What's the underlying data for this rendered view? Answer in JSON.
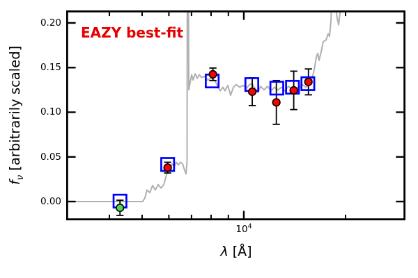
{
  "annotation": {
    "label": "EAZY best-fit",
    "color": "#e60000"
  },
  "axes": {
    "x": {
      "label_symbol": "λ",
      "label_unit": " [Å]",
      "tick_label_base": "10",
      "tick_label_exp": "4",
      "scale": "log"
    },
    "y": {
      "label_symbol": "f",
      "label_sub": "ν",
      "label_rest": " [arbitrarily scaled]",
      "tick_labels": [
        "0.20",
        "0.15",
        "0.10",
        "0.05",
        "0.00"
      ]
    }
  },
  "chart_data": {
    "type": "line+scatter",
    "annotation": "EAZY best-fit",
    "xlabel": "λ [Å]",
    "ylabel": "f_ν [arbitrarily scaled]",
    "x_scale": "log",
    "x_range_angstrom": [
      2980,
      30250
    ],
    "y_range": [
      -0.021,
      0.214
    ],
    "x_major_ticks": [
      10000
    ],
    "x_minor_ticks": [
      4000,
      5000,
      6000,
      7000,
      8000,
      9000,
      20000,
      30000
    ],
    "y_major_ticks": [
      0.0,
      0.05,
      0.1,
      0.15,
      0.2
    ],
    "grid": false,
    "legend": "none",
    "series": [
      {
        "name": "eazy-template-spectrum",
        "type": "line",
        "color": "#b0b0b0",
        "points": [
          [
            2980,
            0.0
          ],
          [
            5020,
            0.0
          ],
          [
            5095,
            0.004
          ],
          [
            5170,
            0.013
          ],
          [
            5270,
            0.01
          ],
          [
            5370,
            0.018
          ],
          [
            5470,
            0.013
          ],
          [
            5580,
            0.019
          ],
          [
            5685,
            0.015
          ],
          [
            5795,
            0.019
          ],
          [
            5905,
            0.03
          ],
          [
            6020,
            0.038
          ],
          [
            6135,
            0.042
          ],
          [
            6220,
            0.039
          ],
          [
            6310,
            0.044
          ],
          [
            6400,
            0.041
          ],
          [
            6495,
            0.044
          ],
          [
            6590,
            0.042
          ],
          [
            6680,
            0.035
          ],
          [
            6745,
            0.031
          ],
          [
            6793,
            0.045
          ],
          [
            6810,
            0.4
          ],
          [
            6830,
            0.4
          ],
          [
            6874,
            0.125
          ],
          [
            6940,
            0.134
          ],
          [
            7007,
            0.142
          ],
          [
            7074,
            0.136
          ],
          [
            7175,
            0.143
          ],
          [
            7278,
            0.138
          ],
          [
            7382,
            0.142
          ],
          [
            7488,
            0.139
          ],
          [
            7632,
            0.14
          ],
          [
            7814,
            0.136
          ],
          [
            8002,
            0.138
          ],
          [
            8193,
            0.136
          ],
          [
            8350,
            0.13
          ],
          [
            8509,
            0.124
          ],
          [
            8672,
            0.128
          ],
          [
            8796,
            0.124
          ],
          [
            8966,
            0.13
          ],
          [
            9137,
            0.119
          ],
          [
            9312,
            0.128
          ],
          [
            9490,
            0.131
          ],
          [
            9719,
            0.128
          ],
          [
            9952,
            0.13
          ],
          [
            10190,
            0.127
          ],
          [
            10387,
            0.131
          ],
          [
            10585,
            0.132
          ],
          [
            10790,
            0.127
          ],
          [
            10995,
            0.122
          ],
          [
            11205,
            0.129
          ],
          [
            11475,
            0.125
          ],
          [
            11750,
            0.129
          ],
          [
            12035,
            0.124
          ],
          [
            12325,
            0.128
          ],
          [
            12620,
            0.125
          ],
          [
            12920,
            0.128
          ],
          [
            13240,
            0.124
          ],
          [
            13550,
            0.129
          ],
          [
            13875,
            0.126
          ],
          [
            14210,
            0.128
          ],
          [
            14550,
            0.127
          ],
          [
            14900,
            0.131
          ],
          [
            15260,
            0.128
          ],
          [
            15630,
            0.131
          ],
          [
            15930,
            0.138
          ],
          [
            16160,
            0.148
          ],
          [
            16390,
            0.162
          ],
          [
            16550,
            0.166
          ],
          [
            16700,
            0.158
          ],
          [
            16945,
            0.168
          ],
          [
            17185,
            0.179
          ],
          [
            17515,
            0.181
          ],
          [
            17765,
            0.188
          ],
          [
            17935,
            0.185
          ],
          [
            18105,
            0.202
          ],
          [
            18280,
            0.24
          ],
          [
            18900,
            0.205
          ],
          [
            19080,
            0.198
          ],
          [
            19260,
            0.212
          ],
          [
            19450,
            0.27
          ],
          [
            19900,
            0.35
          ]
        ]
      },
      {
        "name": "observed-photometry",
        "type": "scatter",
        "marker": "circle",
        "color": "#ff0000",
        "negative_flux_color": "#4cd94c",
        "edge_color": "#000000",
        "points": [
          {
            "lambda": 4300,
            "flux": -0.007,
            "err": 0.0085,
            "negative": true
          },
          {
            "lambda": 5950,
            "flux": 0.038,
            "err": 0.006,
            "negative": false
          },
          {
            "lambda": 8100,
            "flux": 0.1425,
            "err": 0.007,
            "negative": false
          },
          {
            "lambda": 10590,
            "flux": 0.123,
            "err": 0.0155,
            "negative": false
          },
          {
            "lambda": 12480,
            "flux": 0.111,
            "err": 0.0245,
            "negative": false
          },
          {
            "lambda": 14050,
            "flux": 0.1245,
            "err": 0.0215,
            "negative": false
          },
          {
            "lambda": 15530,
            "flux": 0.134,
            "err": 0.0145,
            "negative": false
          }
        ]
      },
      {
        "name": "model-photometry",
        "type": "scatter",
        "marker": "open-square",
        "color": "#0000ff",
        "points": [
          {
            "lambda": 4300,
            "flux": 0.0005
          },
          {
            "lambda": 5950,
            "flux": 0.0415
          },
          {
            "lambda": 8060,
            "flux": 0.135
          },
          {
            "lambda": 10560,
            "flux": 0.131
          },
          {
            "lambda": 12520,
            "flux": 0.127
          },
          {
            "lambda": 13930,
            "flux": 0.128
          },
          {
            "lambda": 15470,
            "flux": 0.132
          }
        ]
      }
    ]
  }
}
